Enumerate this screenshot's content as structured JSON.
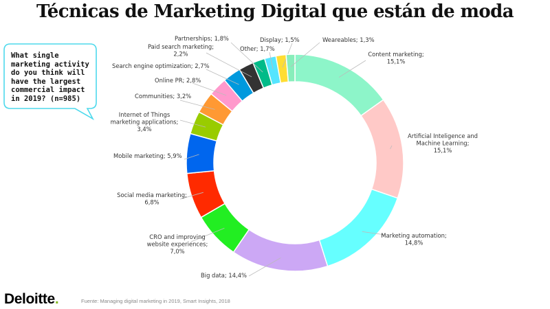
{
  "page": {
    "title": "Técnicas de Marketing Digital que están de moda",
    "question": "What single marketing activity do you think will have the largest commercial impact in 2019? (n=985)",
    "brand_name": "Deloitte",
    "brand_dot": ".",
    "source": "Fuente: Managing digital marketing in 2019, Smart Insights, 2018",
    "colors": {
      "brand_dot": "#86BC25",
      "callout_border": "#4DD9EC"
    }
  },
  "chart_data": {
    "type": "pie",
    "variant": "donut",
    "direction": "clockwise-from-top",
    "slices": [
      {
        "name": "Content marketing",
        "display": "15,1%",
        "value": 15.1,
        "color": "#8DF5C9"
      },
      {
        "name": "Artificial Inteligence and Machine Learning",
        "display": "15,1%",
        "value": 15.1,
        "color": "#FFC9C7"
      },
      {
        "name": "Marketing automation",
        "display": "14,8%",
        "value": 14.8,
        "color": "#66FFFF"
      },
      {
        "name": "Big data",
        "display": "14,4%",
        "value": 14.4,
        "color": "#CCA8F5"
      },
      {
        "name": "CRO and improving website experiences",
        "display": "7,0%",
        "value": 7.0,
        "color": "#22EE22"
      },
      {
        "name": "Social media marketing",
        "display": "6,8%",
        "value": 6.8,
        "color": "#FF2A00"
      },
      {
        "name": "Mobile marketing",
        "display": "5,9%",
        "value": 5.9,
        "color": "#0066EE"
      },
      {
        "name": "Internet of Things marketing applications",
        "display": "3,4%",
        "value": 3.4,
        "color": "#99CC00"
      },
      {
        "name": "Communities",
        "display": "3,2%",
        "value": 3.2,
        "color": "#FF9933"
      },
      {
        "name": "Online PR",
        "display": "2,8%",
        "value": 2.8,
        "color": "#FF99CC"
      },
      {
        "name": "Search engine optimization",
        "display": "2,7%",
        "value": 2.7,
        "color": "#0099DD"
      },
      {
        "name": "Paid search marketing",
        "display": "2,2%",
        "value": 2.2,
        "color": "#333333"
      },
      {
        "name": "Partnerships",
        "display": "1,8%",
        "value": 1.8,
        "color": "#00BB88"
      },
      {
        "name": "Other",
        "display": "1,7%",
        "value": 1.7,
        "color": "#55E5FF"
      },
      {
        "name": "Display",
        "display": "1,5%",
        "value": 1.5,
        "color": "#FFDD33"
      },
      {
        "name": "Weareables",
        "display": "1,3%",
        "value": 1.3,
        "color": "#88EEBB"
      }
    ]
  }
}
